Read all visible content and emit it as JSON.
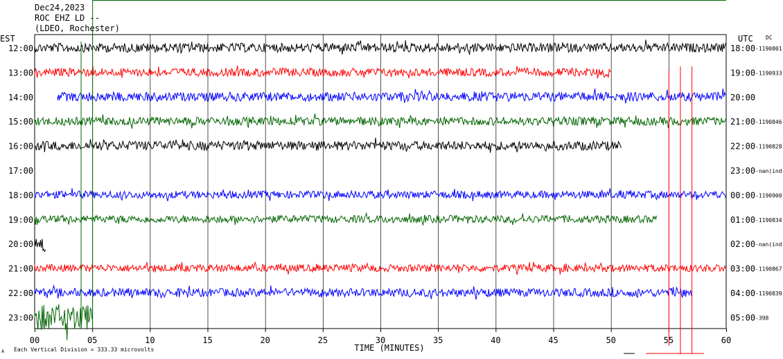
{
  "header": {
    "date": "Dec24,2023",
    "station": "ROC EHZ LD --",
    "network": "(LDEO, Rochester)"
  },
  "left_zone_label": "EST",
  "right_zone_label": "UTC",
  "right_col_label": "DC",
  "footer_note": "Each Vertical Division = 333.33 microvolts",
  "corner_mark": "A",
  "chart_data": {
    "type": "line",
    "title": "Dec24,2023 ROC EHZ LD -- (LDEO, Rochester)",
    "xlabel": "TIME (MINUTES)",
    "xlim": [
      0,
      60
    ],
    "x_ticks": [
      "00",
      "05",
      "10",
      "15",
      "20",
      "25",
      "30",
      "35",
      "40",
      "45",
      "50",
      "55",
      "60"
    ],
    "grid": true,
    "rows": [
      {
        "est": "12:00",
        "utc": "18:00",
        "dc": "-1190801",
        "color": "#000000",
        "start_min": 0,
        "end_min": 60,
        "amp": 0.55
      },
      {
        "est": "13:00",
        "utc": "19:00",
        "dc": "-1190933",
        "color": "#ff0000",
        "start_min": 0,
        "end_min": 50,
        "amp": 0.5
      },
      {
        "est": "14:00",
        "utc": "20:00",
        "dc": "",
        "color": "#0000ff",
        "start_min": 2,
        "end_min": 60,
        "amp": 0.55
      },
      {
        "est": "15:00",
        "utc": "21:00",
        "dc": "-1190846",
        "color": "#006400",
        "start_min": 0,
        "end_min": 60,
        "amp": 0.5
      },
      {
        "est": "16:00",
        "utc": "22:00",
        "dc": "-1190828",
        "color": "#000000",
        "start_min": 0,
        "end_min": 51,
        "amp": 0.55
      },
      {
        "est": "17:00",
        "utc": "23:00",
        "dc": "-nan(ind",
        "color": "#ff0000",
        "start_min": 0,
        "end_min": 0,
        "amp": 0
      },
      {
        "est": "18:00",
        "utc": "00:00",
        "dc": "-1190900",
        "color": "#0000ff",
        "start_min": 0,
        "end_min": 60,
        "amp": 0.45
      },
      {
        "est": "19:00",
        "utc": "01:00",
        "dc": "-1190834",
        "color": "#006400",
        "start_min": 0,
        "end_min": 54,
        "amp": 0.45
      },
      {
        "est": "20:00",
        "utc": "02:00",
        "dc": "-nan(ind",
        "color": "#000000",
        "start_min": 0,
        "end_min": 1,
        "amp": 1.0
      },
      {
        "est": "21:00",
        "utc": "03:00",
        "dc": "-1190867",
        "color": "#ff0000",
        "start_min": 0,
        "end_min": 60,
        "amp": 0.45
      },
      {
        "est": "22:00",
        "utc": "04:00",
        "dc": "-1190839",
        "color": "#0000ff",
        "start_min": 0,
        "end_min": 57,
        "amp": 0.5
      },
      {
        "est": "23:00",
        "utc": "05:00",
        "dc": "-398",
        "color": "#006400",
        "start_min": 0,
        "end_min": 5,
        "amp": 1.6
      }
    ]
  }
}
